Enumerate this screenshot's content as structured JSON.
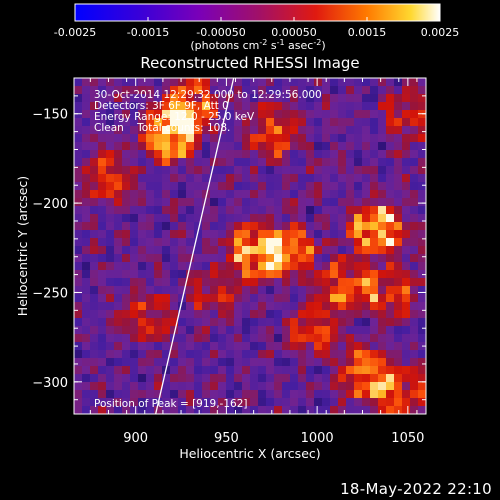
{
  "colorbar": {
    "ticks": [
      "-0.0025",
      "-0.0015",
      "-0.00050",
      "0.00050",
      "0.0015",
      "0.0025"
    ],
    "range": [
      -0.0025,
      0.0025
    ],
    "unit_prefix": "(photons cm",
    "unit_exp1": "-2",
    "unit_mid": " s",
    "unit_exp2": "-1",
    "unit_mid2": " asec",
    "unit_exp3": "-2",
    "unit_suffix": ")"
  },
  "chart_data": {
    "type": "heatmap",
    "title": "Reconstructed RHESSI Image",
    "xlabel": "Heliocentric X (arcsec)",
    "ylabel": "Heliocentric Y (arcsec)",
    "xlim": [
      866,
      1060
    ],
    "ylim": [
      -318,
      -130
    ],
    "xticks": [
      900,
      950,
      1000,
      1050
    ],
    "yticks": [
      -300,
      -250,
      -200,
      -150
    ],
    "annotations": [
      "30-Oct-2014 12:29:32.000 to 12:29:56.000",
      "Detectors: 3F 6F 9F, Att 0",
      "Energy Range: 12.0 - 25.0 keV",
      "Clean    Total counts: 108.",
      "Position of Peak = [919,-162]"
    ],
    "peak": [
      919,
      -162
    ],
    "limb_line": [
      [
        911,
        -318
      ],
      [
        954,
        -130
      ]
    ],
    "hotspots": [
      [
        919,
        -162,
        1.0
      ],
      [
        1033,
        -215,
        0.95
      ],
      [
        930,
        -145,
        0.7
      ],
      [
        965,
        -227,
        0.8
      ],
      [
        985,
        -227,
        0.75
      ],
      [
        1015,
        -245,
        0.6
      ],
      [
        1025,
        -295,
        0.7
      ],
      [
        1045,
        -305,
        0.65
      ],
      [
        1000,
        -270,
        0.55
      ],
      [
        885,
        -185,
        0.5
      ],
      [
        905,
        -265,
        0.45
      ],
      [
        975,
        -160,
        0.55
      ],
      [
        945,
        -250,
        0.45
      ],
      [
        1050,
        -150,
        0.4
      ],
      [
        1040,
        -250,
        0.6
      ]
    ]
  },
  "footer": {
    "timestamp": "18-May-2022 22:10"
  }
}
